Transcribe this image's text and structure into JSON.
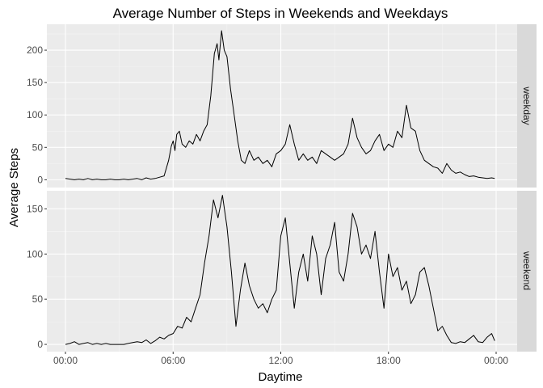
{
  "chart_data": {
    "type": "line",
    "title": "Average Number of Steps in Weekends and Weekdays",
    "xlabel": "Daytime",
    "ylabel": "Average Steps",
    "x_ticks": [
      "00:00",
      "06:00",
      "12:00",
      "18:00",
      "00:00"
    ],
    "x_unit": "hours",
    "xlim": [
      0,
      24
    ],
    "grid": true,
    "line_color": "#000000",
    "panel_background": "#ebebeb",
    "strip_background": "#d9d9d9",
    "facets": [
      {
        "label": "weekday",
        "y_ticks": [
          0,
          50,
          100,
          150,
          200
        ],
        "ylim": [
          -12,
          240
        ],
        "x": [
          0,
          0.25,
          0.5,
          0.75,
          1,
          1.25,
          1.5,
          1.75,
          2,
          2.25,
          2.5,
          2.75,
          3,
          3.25,
          3.5,
          3.75,
          4,
          4.25,
          4.5,
          4.75,
          5,
          5.25,
          5.5,
          5.75,
          5.9,
          6,
          6.1,
          6.2,
          6.35,
          6.5,
          6.7,
          6.9,
          7.1,
          7.3,
          7.5,
          7.7,
          7.9,
          8.1,
          8.3,
          8.45,
          8.55,
          8.7,
          8.85,
          9.0,
          9.2,
          9.4,
          9.6,
          9.8,
          10.0,
          10.25,
          10.5,
          10.75,
          11.0,
          11.25,
          11.5,
          11.75,
          12.0,
          12.25,
          12.5,
          12.75,
          13.0,
          13.25,
          13.5,
          13.75,
          14.0,
          14.25,
          14.5,
          14.75,
          15.0,
          15.25,
          15.5,
          15.75,
          16.0,
          16.25,
          16.5,
          16.75,
          17.0,
          17.25,
          17.5,
          17.75,
          18.0,
          18.25,
          18.5,
          18.75,
          19.0,
          19.25,
          19.5,
          19.75,
          20.0,
          20.25,
          20.5,
          20.75,
          21.0,
          21.25,
          21.5,
          21.75,
          22.0,
          22.25,
          22.5,
          22.75,
          23.0,
          23.25,
          23.5,
          23.75,
          23.92
        ],
        "y": [
          2,
          1,
          0,
          1,
          0,
          2,
          0,
          1,
          0,
          0,
          1,
          0,
          0,
          1,
          0,
          1,
          2,
          0,
          3,
          1,
          2,
          4,
          6,
          30,
          52,
          60,
          45,
          70,
          75,
          55,
          50,
          60,
          55,
          70,
          60,
          75,
          85,
          130,
          195,
          210,
          185,
          230,
          200,
          190,
          140,
          100,
          60,
          30,
          25,
          45,
          30,
          35,
          25,
          30,
          20,
          40,
          45,
          55,
          85,
          55,
          30,
          40,
          30,
          35,
          25,
          45,
          40,
          35,
          30,
          35,
          40,
          55,
          95,
          65,
          50,
          40,
          45,
          60,
          70,
          45,
          55,
          50,
          75,
          65,
          115,
          80,
          75,
          45,
          30,
          25,
          20,
          18,
          10,
          25,
          15,
          10,
          12,
          8,
          5,
          6,
          4,
          3,
          2,
          3,
          2
        ]
      },
      {
        "label": "weekend",
        "y_ticks": [
          0,
          50,
          100,
          150
        ],
        "ylim": [
          -8,
          170
        ],
        "x": [
          0,
          0.25,
          0.5,
          0.75,
          1,
          1.25,
          1.5,
          1.75,
          2,
          2.25,
          2.5,
          2.75,
          3,
          3.25,
          3.5,
          3.75,
          4,
          4.25,
          4.5,
          4.75,
          5,
          5.25,
          5.5,
          5.75,
          6,
          6.25,
          6.5,
          6.75,
          7,
          7.25,
          7.5,
          7.75,
          8,
          8.25,
          8.5,
          8.75,
          9.0,
          9.25,
          9.5,
          9.75,
          10.0,
          10.25,
          10.5,
          10.75,
          11.0,
          11.25,
          11.5,
          11.75,
          12.0,
          12.25,
          12.5,
          12.75,
          13.0,
          13.25,
          13.5,
          13.75,
          14.0,
          14.25,
          14.5,
          14.75,
          15.0,
          15.25,
          15.5,
          15.75,
          16.0,
          16.25,
          16.5,
          16.75,
          17.0,
          17.25,
          17.5,
          17.75,
          18.0,
          18.25,
          18.5,
          18.75,
          19.0,
          19.25,
          19.5,
          19.75,
          20.0,
          20.25,
          20.5,
          20.75,
          21.0,
          21.25,
          21.5,
          21.75,
          22.0,
          22.25,
          22.5,
          22.75,
          23.0,
          23.25,
          23.5,
          23.75,
          23.92
        ],
        "y": [
          0,
          1,
          3,
          0,
          1,
          2,
          0,
          1,
          0,
          1,
          0,
          0,
          0,
          0,
          1,
          2,
          3,
          2,
          5,
          1,
          4,
          8,
          6,
          10,
          12,
          20,
          18,
          30,
          25,
          40,
          55,
          90,
          120,
          160,
          140,
          165,
          130,
          80,
          20,
          60,
          90,
          65,
          50,
          40,
          45,
          35,
          50,
          60,
          120,
          140,
          90,
          40,
          80,
          100,
          70,
          120,
          100,
          55,
          95,
          110,
          135,
          80,
          70,
          100,
          145,
          130,
          100,
          110,
          95,
          125,
          80,
          40,
          100,
          75,
          85,
          60,
          70,
          45,
          55,
          80,
          85,
          65,
          40,
          15,
          20,
          10,
          2,
          1,
          3,
          2,
          6,
          10,
          3,
          2,
          8,
          12,
          4
        ]
      }
    ]
  }
}
